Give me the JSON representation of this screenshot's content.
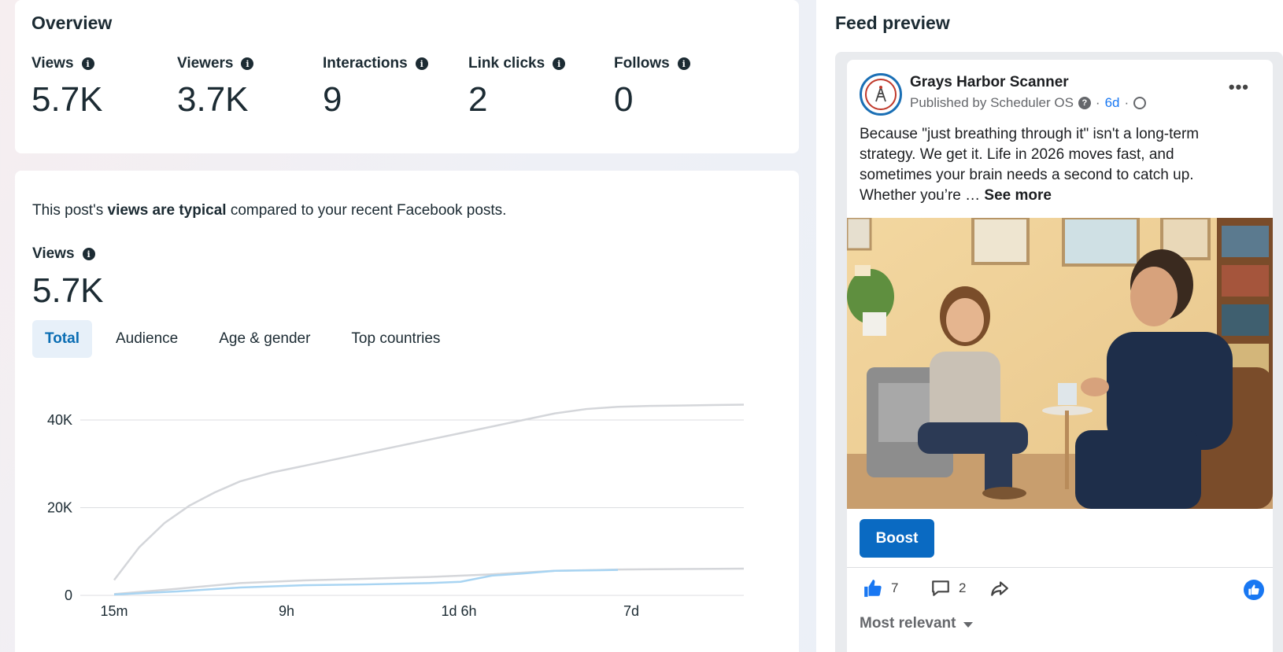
{
  "overview": {
    "title": "Overview",
    "metrics": [
      {
        "label": "Views",
        "value": "5.7K"
      },
      {
        "label": "Viewers",
        "value": "3.7K"
      },
      {
        "label": "Interactions",
        "value": "9"
      },
      {
        "label": "Link clicks",
        "value": "2"
      },
      {
        "label": "Follows",
        "value": "0"
      }
    ]
  },
  "views_panel": {
    "typical_prefix": "This post's ",
    "typical_bold": "views are typical",
    "typical_suffix": " compared to your recent Facebook posts.",
    "views_label": "Views",
    "views_value": "5.7K",
    "tabs": [
      {
        "label": "Total",
        "active": true
      },
      {
        "label": "Audience",
        "active": false
      },
      {
        "label": "Age & gender",
        "active": false
      },
      {
        "label": "Top countries",
        "active": false
      }
    ]
  },
  "chart_data": {
    "type": "line",
    "title": "",
    "xlabel": "",
    "ylabel": "",
    "x_tick_labels": [
      "15m",
      "9h",
      "1d 6h",
      "7d"
    ],
    "y_tick_labels": [
      "0",
      "20K",
      "40K"
    ],
    "ylim": [
      0,
      45000
    ],
    "grid": true,
    "series": [
      {
        "color": "#d4d6da",
        "x": [
          0,
          0.04,
          0.08,
          0.12,
          0.16,
          0.2,
          0.25,
          0.3,
          0.35,
          0.4,
          0.45,
          0.5,
          0.55,
          0.6,
          0.65,
          0.7,
          0.75,
          0.8,
          0.85,
          0.9,
          0.95,
          1.0
        ],
        "values": [
          3500,
          11000,
          16500,
          20500,
          23500,
          26000,
          28000,
          29500,
          31000,
          32500,
          34000,
          35500,
          37000,
          38500,
          40000,
          41500,
          42500,
          43000,
          43200,
          43300,
          43400,
          43500
        ]
      },
      {
        "color": "#d4d6da",
        "x": [
          0,
          0.1,
          0.2,
          0.3,
          0.4,
          0.5,
          0.6,
          0.7,
          0.8,
          0.9,
          1.0
        ],
        "values": [
          300,
          1500,
          2800,
          3400,
          3800,
          4200,
          4800,
          5600,
          5900,
          6000,
          6100
        ]
      },
      {
        "color": "#a8d4f2",
        "x": [
          0,
          0.1,
          0.2,
          0.3,
          0.4,
          0.5,
          0.55,
          0.6,
          0.65,
          0.7,
          0.8
        ],
        "values": [
          200,
          900,
          1800,
          2300,
          2500,
          2800,
          3100,
          4500,
          5000,
          5600,
          5800
        ]
      }
    ]
  },
  "feed": {
    "title": "Feed preview",
    "page_name": "Grays Harbor Scanner",
    "published_by": "Published by Scheduler OS",
    "question_mark": "?",
    "dot1": "·",
    "time": "6d",
    "dot2": "·",
    "more": "•••",
    "text": "Because \"just breathing through it\" isn't a long-term strategy. We get it. Life in 2026 moves fast, and sometimes your brain needs a second to catch up. Whether you’re … ",
    "see_more": "See more",
    "boost": "Boost",
    "likes": "7",
    "comments": "2",
    "sort_label": "Most relevant"
  },
  "colors": {
    "accent": "#0a6ac2",
    "tab_active_bg": "#e7f0f9",
    "facebook_blue": "#1877f2"
  }
}
